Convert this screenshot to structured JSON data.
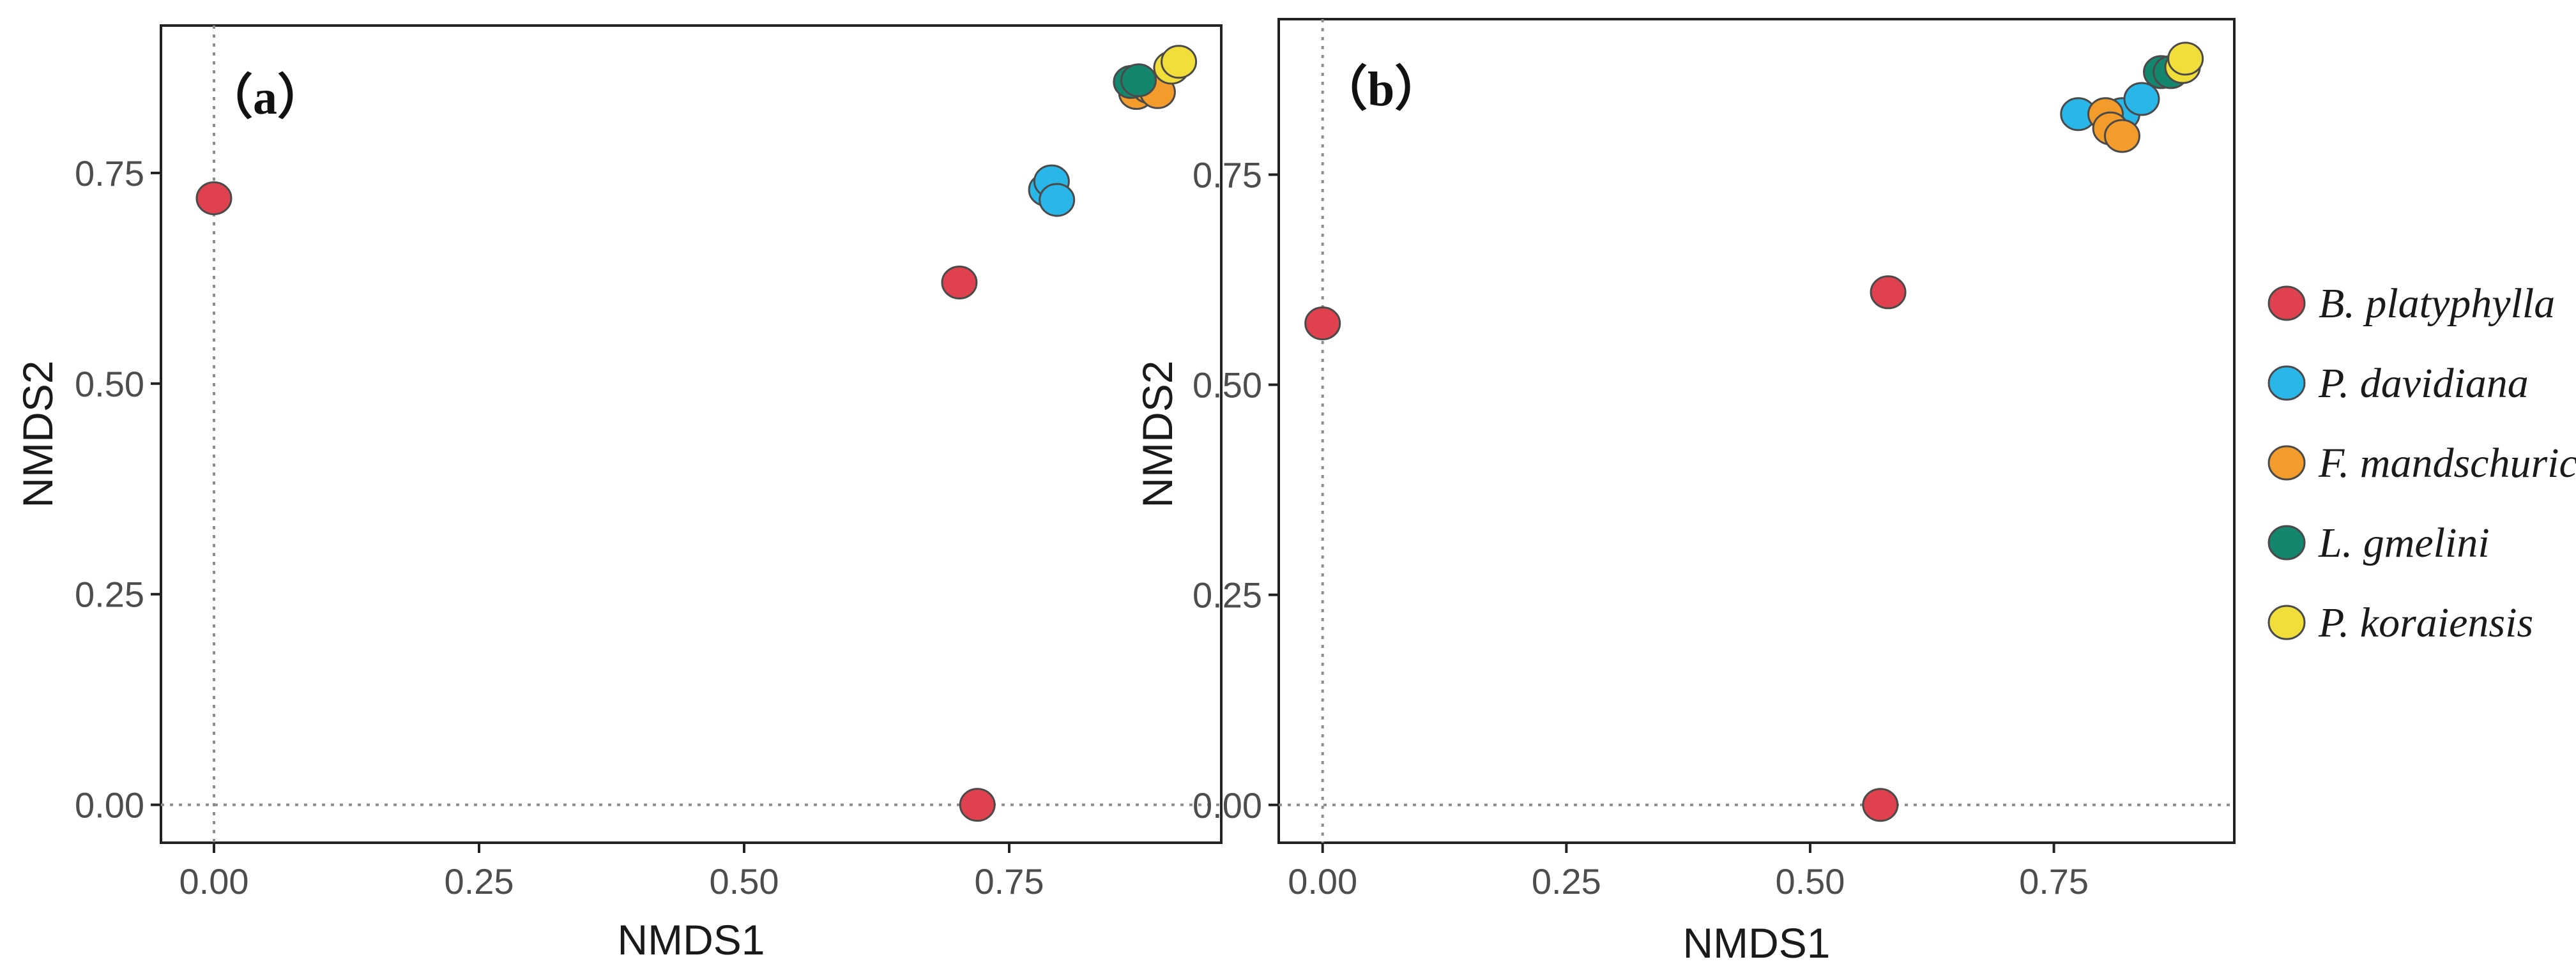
{
  "chart_data": [
    {
      "type": "scatter",
      "panel_label": "（a）",
      "xlabel": "NMDS1",
      "ylabel": "NMDS2",
      "xlim": [
        -0.05,
        0.95
      ],
      "ylim": [
        -0.045,
        0.925
      ],
      "x_ticks": [
        "0.00",
        "0.25",
        "0.50",
        "0.75"
      ],
      "x_tick_values": [
        0,
        0.25,
        0.5,
        0.75
      ],
      "y_ticks": [
        "0.00",
        "0.25",
        "0.50",
        "0.75"
      ],
      "y_tick_values": [
        0,
        0.25,
        0.5,
        0.75
      ],
      "reference_lines": {
        "x": 0,
        "y": 0
      },
      "series": [
        {
          "name": "B. platyphylla",
          "points": [
            [
              0.0,
              0.72
            ],
            [
              0.703,
              0.62
            ],
            [
              0.72,
              0.0
            ]
          ]
        },
        {
          "name": "P. davidiana",
          "points": [
            [
              0.785,
              0.73
            ],
            [
              0.79,
              0.74
            ],
            [
              0.795,
              0.718
            ]
          ]
        },
        {
          "name": "F. mandschurica",
          "points": [
            [
              0.87,
              0.845
            ],
            [
              0.882,
              0.852
            ],
            [
              0.89,
              0.846
            ]
          ]
        },
        {
          "name": "L. gmelini",
          "points": [
            [
              0.865,
              0.858
            ],
            [
              0.872,
              0.86
            ]
          ]
        },
        {
          "name": "P. koraiensis",
          "points": [
            [
              0.903,
              0.875
            ],
            [
              0.91,
              0.882
            ]
          ]
        }
      ]
    },
    {
      "type": "scatter",
      "panel_label": "（b）",
      "xlabel": "NMDS1",
      "ylabel": "NMDS2",
      "xlim": [
        -0.045,
        0.935
      ],
      "ylim": [
        -0.045,
        0.935
      ],
      "x_ticks": [
        "0.00",
        "0.25",
        "0.50",
        "0.75"
      ],
      "x_tick_values": [
        0,
        0.25,
        0.5,
        0.75
      ],
      "y_ticks": [
        "0.00",
        "0.25",
        "0.50",
        "0.75"
      ],
      "y_tick_values": [
        0,
        0.25,
        0.5,
        0.75
      ],
      "reference_lines": {
        "x": 0,
        "y": 0
      },
      "series": [
        {
          "name": "B. platyphylla",
          "points": [
            [
              0.0,
              0.573
            ],
            [
              0.58,
              0.61
            ],
            [
              0.572,
              0.0
            ]
          ]
        },
        {
          "name": "P. davidiana",
          "points": [
            [
              0.775,
              0.822
            ],
            [
              0.82,
              0.822
            ],
            [
              0.84,
              0.84
            ]
          ]
        },
        {
          "name": "F. mandschurica",
          "points": [
            [
              0.803,
              0.822
            ],
            [
              0.808,
              0.805
            ],
            [
              0.82,
              0.796
            ]
          ]
        },
        {
          "name": "L. gmelini",
          "points": [
            [
              0.86,
              0.872
            ],
            [
              0.87,
              0.872
            ]
          ]
        },
        {
          "name": "P. koraiensis",
          "points": [
            [
              0.882,
              0.878
            ],
            [
              0.885,
              0.888
            ]
          ]
        }
      ]
    }
  ],
  "legend": {
    "position": "right",
    "items": [
      {
        "label": "B. platyphylla",
        "color": "#e0414f"
      },
      {
        "label": "P. davidiana",
        "color": "#29b6e8"
      },
      {
        "label": "F. mandschurica",
        "color": "#f39c2b"
      },
      {
        "label": "L. gmelini",
        "color": "#14866d"
      },
      {
        "label": "P. koraiensis",
        "color": "#f2de3a"
      }
    ]
  },
  "colors": {
    "stroke": "#4a4a4a",
    "frame": "#222222",
    "refline": "#8c8c8c"
  }
}
